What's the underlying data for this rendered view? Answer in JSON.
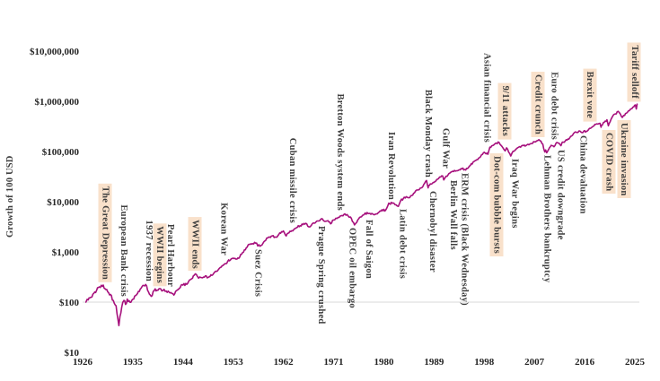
{
  "chart_data": {
    "type": "line",
    "title": "",
    "ylabel": "Growth of 100 USD",
    "xlabel": "",
    "y_scale": "log",
    "grid": "single-reference-line",
    "reference_line_value": 100,
    "line_color": "#a6107c",
    "gridline_color": "#d9d9d9",
    "tick_color": "#262626",
    "annotation_color": "#3d3d3d",
    "highlight_bg": "#f9e1cb",
    "xlim": [
      1926,
      2025
    ],
    "ylim": [
      10,
      10000000
    ],
    "x_ticks": [
      1926,
      1935,
      1944,
      1953,
      1962,
      1971,
      1980,
      1989,
      1998,
      2007,
      2016,
      2025
    ],
    "y_ticks": [
      {
        "value": 10,
        "label": "$10"
      },
      {
        "value": 100,
        "label": "$100"
      },
      {
        "value": 1000,
        "label": "$1,000"
      },
      {
        "value": 10000,
        "label": "$10,000"
      },
      {
        "value": 100000,
        "label": "$100,000"
      },
      {
        "value": 1000000,
        "label": "$1,000,000"
      },
      {
        "value": 10000000,
        "label": "$10,000,000"
      }
    ],
    "series": [
      {
        "name": "Growth of 100 USD",
        "points": [
          [
            1926.6,
            100
          ],
          [
            1927,
            111
          ],
          [
            1927.5,
            125
          ],
          [
            1928,
            149
          ],
          [
            1928.5,
            170
          ],
          [
            1929,
            201
          ],
          [
            1929.7,
            218
          ],
          [
            1930,
            186
          ],
          [
            1930.5,
            160
          ],
          [
            1931,
            142
          ],
          [
            1931.5,
            108
          ],
          [
            1932,
            84
          ],
          [
            1932.5,
            34
          ],
          [
            1932.7,
            52
          ],
          [
            1933,
            78
          ],
          [
            1933.4,
            108
          ],
          [
            1933.7,
            90
          ],
          [
            1934,
            115
          ],
          [
            1934.5,
            99
          ],
          [
            1935,
            114
          ],
          [
            1935.5,
            135
          ],
          [
            1936,
            163
          ],
          [
            1936.5,
            190
          ],
          [
            1937,
            213
          ],
          [
            1937.3,
            225
          ],
          [
            1938,
            143
          ],
          [
            1938.3,
            130
          ],
          [
            1939,
            184
          ],
          [
            1939.5,
            172
          ],
          [
            1940,
            183
          ],
          [
            1940.4,
            170
          ],
          [
            1941,
            166
          ],
          [
            1941.5,
            158
          ],
          [
            1942,
            149
          ],
          [
            1942.35,
            138
          ],
          [
            1943,
            176
          ],
          [
            1943.5,
            195
          ],
          [
            1944,
            218
          ],
          [
            1944.5,
            235
          ],
          [
            1945,
            257
          ],
          [
            1945.7,
            300
          ],
          [
            1946,
            342
          ],
          [
            1946.4,
            355
          ],
          [
            1946.8,
            300
          ],
          [
            1947,
            317
          ],
          [
            1947.5,
            305
          ],
          [
            1948,
            333
          ],
          [
            1948.5,
            310
          ],
          [
            1949,
            350
          ],
          [
            1949.5,
            375
          ],
          [
            1950,
            410
          ],
          [
            1950.5,
            470
          ],
          [
            1951,
            528
          ],
          [
            1951.5,
            580
          ],
          [
            1952,
            644
          ],
          [
            1952.5,
            690
          ],
          [
            1953,
            752
          ],
          [
            1953.5,
            718
          ],
          [
            1954,
            745
          ],
          [
            1954.5,
            900
          ],
          [
            1955,
            1098
          ],
          [
            1955.5,
            1250
          ],
          [
            1956,
            1414
          ],
          [
            1956.5,
            1460
          ],
          [
            1957,
            1499
          ],
          [
            1957.8,
            1295
          ],
          [
            1958,
            1351
          ],
          [
            1958.5,
            1600
          ],
          [
            1959,
            1882
          ],
          [
            1959.5,
            1990
          ],
          [
            1960,
            2089
          ],
          [
            1960.5,
            1975
          ],
          [
            1961,
            2099
          ],
          [
            1961.5,
            2350
          ],
          [
            1962,
            2612
          ],
          [
            1962.5,
            2080
          ],
          [
            1963,
            2402
          ],
          [
            1963.5,
            2650
          ],
          [
            1964,
            2902
          ],
          [
            1964.5,
            3100
          ],
          [
            1965,
            3337
          ],
          [
            1965.5,
            3500
          ],
          [
            1966,
            3719
          ],
          [
            1966.75,
            3150
          ],
          [
            1967,
            3373
          ],
          [
            1967.5,
            3750
          ],
          [
            1968,
            4111
          ],
          [
            1968.9,
            4600
          ],
          [
            1969,
            4527
          ],
          [
            1969.6,
            4080
          ],
          [
            1970,
            4174
          ],
          [
            1970.45,
            3620
          ],
          [
            1971,
            4327
          ],
          [
            1971.4,
            4690
          ],
          [
            1972,
            4894
          ],
          [
            1972.5,
            5300
          ],
          [
            1973,
            5741
          ],
          [
            1973.6,
            5200
          ],
          [
            1974,
            4962
          ],
          [
            1974.75,
            3450
          ],
          [
            1975,
            3740
          ],
          [
            1975.5,
            4580
          ],
          [
            1976,
            5003
          ],
          [
            1976.5,
            5600
          ],
          [
            1977,
            6088
          ],
          [
            1977.5,
            5850
          ],
          [
            1978,
            5686
          ],
          [
            1978.25,
            5480
          ],
          [
            1979,
            6030
          ],
          [
            1979.5,
            6500
          ],
          [
            1980,
            7048
          ],
          [
            1980.3,
            6700
          ],
          [
            1980.9,
            9380
          ],
          [
            1981,
            9129
          ],
          [
            1981.5,
            9300
          ],
          [
            1982,
            8714
          ],
          [
            1982.6,
            8090
          ],
          [
            1983,
            10423
          ],
          [
            1983.5,
            11600
          ],
          [
            1984,
            12571
          ],
          [
            1984.5,
            11980
          ],
          [
            1985,
            13289
          ],
          [
            1985.5,
            15000
          ],
          [
            1986,
            17122
          ],
          [
            1986.5,
            18500
          ],
          [
            1987,
            20043
          ],
          [
            1987.65,
            26500
          ],
          [
            1987.95,
            18800
          ],
          [
            1988,
            21005
          ],
          [
            1988.5,
            22500
          ],
          [
            1989,
            24203
          ],
          [
            1989.5,
            27800
          ],
          [
            1990,
            31166
          ],
          [
            1990.55,
            32500
          ],
          [
            1990.75,
            27200
          ],
          [
            1991,
            30272
          ],
          [
            1991.5,
            34000
          ],
          [
            1992,
            38652
          ],
          [
            1992.5,
            39800
          ],
          [
            1993,
            41363
          ],
          [
            1993.5,
            43200
          ],
          [
            1994,
            45176
          ],
          [
            1994.5,
            43900
          ],
          [
            1995,
            45729
          ],
          [
            1995.5,
            52500
          ],
          [
            1996,
            61304
          ],
          [
            1996.5,
            66500
          ],
          [
            1997,
            74164
          ],
          [
            1997.5,
            86000
          ],
          [
            1998,
            96651
          ],
          [
            1998.65,
            88000
          ],
          [
            1999,
            121789
          ],
          [
            1999.5,
            131000
          ],
          [
            2000,
            145205
          ],
          [
            2000.65,
            152000
          ],
          [
            2001,
            132954
          ],
          [
            2001.75,
            103000
          ],
          [
            2002,
            118385
          ],
          [
            2002.75,
            81500
          ],
          [
            2003,
            94072
          ],
          [
            2003.5,
            105000
          ],
          [
            2004,
            118657
          ],
          [
            2004.5,
            122000
          ],
          [
            2005,
            130479
          ],
          [
            2005.5,
            131500
          ],
          [
            2006,
            136336
          ],
          [
            2006.5,
            144000
          ],
          [
            2007,
            156096
          ],
          [
            2007.8,
            172000
          ],
          [
            2008,
            163982
          ],
          [
            2008.5,
            140000
          ],
          [
            2008.85,
            98000
          ],
          [
            2009,
            107181
          ],
          [
            2009.2,
            94500
          ],
          [
            2009.7,
            120000
          ],
          [
            2010,
            132984
          ],
          [
            2010.5,
            124500
          ],
          [
            2011,
            151356
          ],
          [
            2011.75,
            130500
          ],
          [
            2012,
            154280
          ],
          [
            2012.5,
            160000
          ],
          [
            2013,
            176831
          ],
          [
            2013.5,
            200000
          ],
          [
            2014,
            228921
          ],
          [
            2014.5,
            242000
          ],
          [
            2015,
            257513
          ],
          [
            2015.7,
            239500
          ],
          [
            2016,
            260777
          ],
          [
            2016.15,
            244000
          ],
          [
            2016.7,
            272000
          ],
          [
            2017,
            289367
          ],
          [
            2017.5,
            316000
          ],
          [
            2018,
            347058
          ],
          [
            2018.75,
            364000
          ],
          [
            2018.95,
            305000
          ],
          [
            2019,
            333122
          ],
          [
            2019.5,
            380000
          ],
          [
            2020,
            428364
          ],
          [
            2020.25,
            325000
          ],
          [
            2020.7,
            430000
          ],
          [
            2021,
            500467
          ],
          [
            2021.5,
            560000
          ],
          [
            2022,
            631085
          ],
          [
            2022.4,
            560000
          ],
          [
            2022.75,
            478000
          ],
          [
            2023,
            525045
          ],
          [
            2023.5,
            580000
          ],
          [
            2024,
            650674
          ],
          [
            2024.5,
            720000
          ],
          [
            2024.95,
            830000
          ],
          [
            2025.1,
            845000
          ],
          [
            2025.25,
            703000
          ],
          [
            2025.4,
            878000
          ]
        ]
      }
    ],
    "events": [
      {
        "label": "The Great Depression",
        "year": 1930.0,
        "side": "above",
        "highlight": true
      },
      {
        "label": "European Bank crisis",
        "year": 1933.3,
        "side": "above",
        "highlight": false
      },
      {
        "label": "1937 recession",
        "year": 1937.8,
        "side": "above",
        "highlight": false
      },
      {
        "label": "WWII begins",
        "year": 1939.8,
        "side": "above",
        "highlight": true
      },
      {
        "label": "Pearl Harbour",
        "year": 1941.7,
        "side": "above",
        "highlight": false
      },
      {
        "label": "WWII ends",
        "year": 1946.1,
        "side": "above",
        "highlight": true
      },
      {
        "label": "Korean War",
        "year": 1951.3,
        "side": "above",
        "highlight": false
      },
      {
        "label": "Suez Crisis",
        "year": 1957.4,
        "side": "below",
        "highlight": false
      },
      {
        "label": "Cuban missile crisis",
        "year": 1963.6,
        "side": "above",
        "highlight": false
      },
      {
        "label": "Prague Spring crushed",
        "year": 1968.7,
        "side": "below",
        "highlight": false
      },
      {
        "label": "Bretton Woods system ends",
        "year": 1972.1,
        "side": "above",
        "highlight": false
      },
      {
        "label": "OPEC oil embargo",
        "year": 1974.3,
        "side": "below",
        "highlight": false
      },
      {
        "label": "Fall of Saigon",
        "year": 1977.3,
        "side": "below",
        "highlight": false
      },
      {
        "label": "Iran Revolution",
        "year": 1981.3,
        "side": "above",
        "highlight": false
      },
      {
        "label": "Latin debt crisis",
        "year": 1983.3,
        "side": "below",
        "highlight": false
      },
      {
        "label": "Black Monday crash",
        "year": 1987.9,
        "side": "above",
        "highlight": false
      },
      {
        "label": "Chernobyl disaster",
        "year": 1988.7,
        "side": "below",
        "highlight": false
      },
      {
        "label": "Gulf War",
        "year": 1991.0,
        "side": "above",
        "highlight": false
      },
      {
        "label": "Berlin Wall falls",
        "year": 1992.4,
        "side": "below",
        "highlight": false
      },
      {
        "label": "ERM crisis (Black Wednesday)",
        "year": 1994.4,
        "side": "below",
        "highlight": false
      },
      {
        "label": "Asian financial crisis",
        "year": 1998.4,
        "side": "above",
        "highlight": false
      },
      {
        "label": "Dot-com bubble bursts",
        "year": 2000.2,
        "side": "below",
        "highlight": true
      },
      {
        "label": "9/11 attacks",
        "year": 2001.7,
        "side": "above",
        "highlight": true
      },
      {
        "label": "Iraq War begins",
        "year": 2003.4,
        "side": "below",
        "highlight": false
      },
      {
        "label": "Credit crunch",
        "year": 2007.6,
        "side": "above",
        "highlight": true
      },
      {
        "label": "Lehman Brothers bankruptcy",
        "year": 2009.2,
        "side": "below",
        "highlight": false
      },
      {
        "label": "Euro debt crisis",
        "year": 2010.5,
        "side": "above",
        "highlight": false
      },
      {
        "label": "US credit downgrade",
        "year": 2011.6,
        "side": "below",
        "highlight": false
      },
      {
        "label": "China devaluation",
        "year": 2015.7,
        "side": "below",
        "highlight": false
      },
      {
        "label": "Brexit vote",
        "year": 2016.9,
        "side": "above",
        "highlight": true
      },
      {
        "label": "COVID crash",
        "year": 2020.3,
        "side": "below",
        "highlight": true
      },
      {
        "label": "Ukraine invasion",
        "year": 2023.0,
        "side": "below",
        "highlight": true
      },
      {
        "label": "Tariff selloff",
        "year": 2024.9,
        "side": "above",
        "highlight": true
      }
    ]
  }
}
